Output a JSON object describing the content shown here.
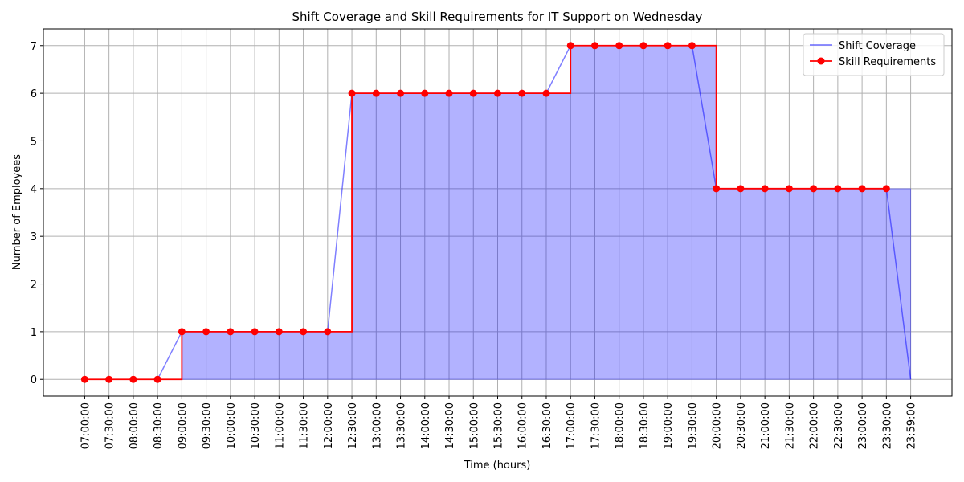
{
  "chart_data": {
    "type": "step_area_line",
    "title": "Shift Coverage and Skill Requirements for IT Support on Wednesday",
    "xlabel": "Time (hours)",
    "ylabel": "Number of Employees",
    "categories": [
      "07:00:00",
      "07:30:00",
      "08:00:00",
      "08:30:00",
      "09:00:00",
      "09:30:00",
      "10:00:00",
      "10:30:00",
      "11:00:00",
      "11:30:00",
      "12:00:00",
      "12:30:00",
      "13:00:00",
      "13:30:00",
      "14:00:00",
      "14:30:00",
      "15:00:00",
      "15:30:00",
      "16:00:00",
      "16:30:00",
      "17:00:00",
      "17:30:00",
      "18:00:00",
      "18:30:00",
      "19:00:00",
      "19:30:00",
      "20:00:00",
      "20:30:00",
      "21:00:00",
      "21:30:00",
      "22:00:00",
      "22:30:00",
      "23:00:00",
      "23:30:00",
      "23:59:00"
    ],
    "series": [
      {
        "name": "Shift Coverage",
        "color": "#0000ff",
        "values": [
          0,
          0,
          0,
          0,
          1,
          1,
          1,
          1,
          1,
          1,
          1,
          6,
          6,
          6,
          6,
          6,
          6,
          6,
          6,
          6,
          7,
          7,
          7,
          7,
          7,
          7,
          4,
          4,
          4,
          4,
          4,
          4,
          4,
          4,
          0
        ]
      },
      {
        "name": "Skill Requirements",
        "color": "#ff0000",
        "values": [
          0,
          0,
          0,
          0,
          1,
          1,
          1,
          1,
          1,
          1,
          1,
          6,
          6,
          6,
          6,
          6,
          6,
          6,
          6,
          6,
          7,
          7,
          7,
          7,
          7,
          7,
          4,
          4,
          4,
          4,
          4,
          4,
          4,
          4,
          null
        ]
      }
    ],
    "ylim": [
      -0.35,
      7.35
    ],
    "yticks": [
      0,
      1,
      2,
      3,
      4,
      5,
      6,
      7
    ],
    "grid": true,
    "legend": "upper right"
  }
}
